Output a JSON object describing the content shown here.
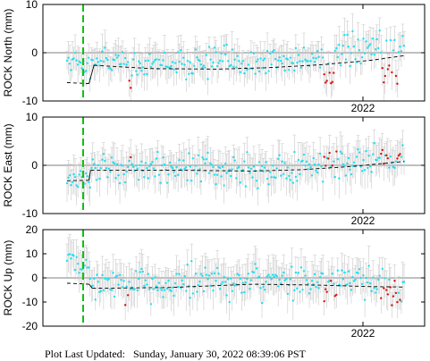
{
  "chart_data": [
    {
      "type": "scatter",
      "ylabel": "ROCK North (mm)",
      "ylim": [
        -10,
        10
      ],
      "yticks": [
        10,
        0,
        -10
      ],
      "xtick_labels": [
        "2022"
      ],
      "colors": {
        "data": "#1ee0f0",
        "outlier": "#e01010",
        "errorbar": "#c8c8c8",
        "model": "#000000",
        "event": "#10c010"
      },
      "model_segments": [
        {
          "x": [
            0.0,
            0.065
          ],
          "y": [
            -6.2,
            -6.4
          ]
        },
        {
          "x": [
            0.08,
            0.25,
            0.45,
            0.6,
            0.75,
            0.9,
            1.0
          ],
          "y": [
            -2.6,
            -3.3,
            -3.4,
            -3.1,
            -2.5,
            -1.6,
            -0.6
          ]
        }
      ],
      "series_params": {
        "pre": {
          "x": [
            0.0,
            0.065
          ],
          "y": [
            -1.5,
            -2.5
          ]
        },
        "mid_bias": 1.2,
        "mid_noise": 2.2,
        "late_bias": 2.2,
        "outlier_bias": -3.0,
        "outlier_noise": 1.6,
        "err": 3.2
      }
    },
    {
      "type": "scatter",
      "ylabel": "ROCK East (mm)",
      "ylim": [
        -10,
        10
      ],
      "yticks": [
        10,
        0,
        -10
      ],
      "xtick_labels": [
        "2022"
      ],
      "colors": {
        "data": "#1ee0f0",
        "outlier": "#e01010",
        "errorbar": "#c8c8c8",
        "model": "#000000",
        "event": "#10c010"
      },
      "model_segments": [
        {
          "x": [
            0.0,
            0.065
          ],
          "y": [
            -3.2,
            -3.1
          ]
        },
        {
          "x": [
            0.07,
            0.3,
            0.55,
            0.7,
            0.85,
            1.0
          ],
          "y": [
            -1.0,
            -1.0,
            -1.2,
            -0.9,
            -0.2,
            0.8
          ]
        }
      ],
      "series_params": {
        "pre": {
          "x": [
            0.0,
            0.065
          ],
          "y": [
            -3.0,
            -2.0
          ]
        },
        "mid_bias": 0.3,
        "mid_noise": 2.3,
        "late_bias": 1.0,
        "outlier_bias": 2.0,
        "outlier_noise": 1.5,
        "err": 3.5
      }
    },
    {
      "type": "scatter",
      "ylabel": "ROCK Up (mm)",
      "ylim": [
        -20,
        20
      ],
      "yticks": [
        20,
        10,
        0,
        -10,
        -20
      ],
      "xtick_labels": [
        "2022"
      ],
      "colors": {
        "data": "#1ee0f0",
        "outlier": "#e01010",
        "errorbar": "#c8c8c8",
        "model": "#000000",
        "event": "#10c010"
      },
      "model_segments": [
        {
          "x": [
            0.0,
            0.065
          ],
          "y": [
            -2.2,
            -2.6
          ]
        },
        {
          "x": [
            0.075,
            0.3,
            0.55,
            0.75,
            0.9,
            1.0
          ],
          "y": [
            -4.3,
            -4.0,
            -2.6,
            -3.0,
            -3.6,
            -3.8
          ]
        }
      ],
      "series_params": {
        "pre": {
          "x": [
            0.0,
            0.065
          ],
          "y": [
            7.0,
            5.0
          ]
        },
        "mid_bias": 1.5,
        "mid_noise": 5.0,
        "late_bias": 1.0,
        "outlier_bias": -3.0,
        "outlier_noise": 3.5,
        "err": 7.0
      }
    }
  ],
  "footer": "Plot Last Updated:   Sunday, January 30, 2022 08:39:06 PST"
}
